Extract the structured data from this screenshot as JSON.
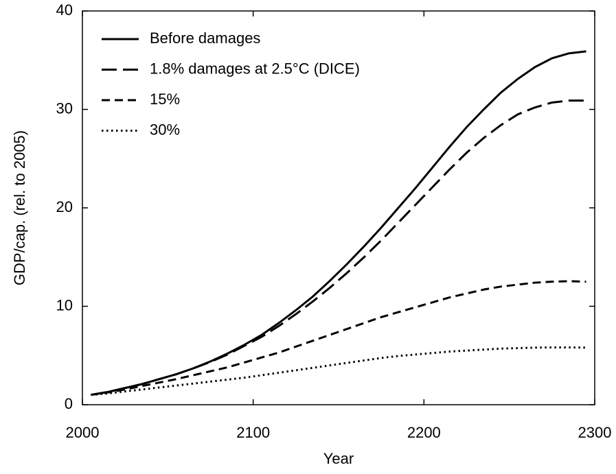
{
  "chart_data": {
    "type": "line",
    "x_label": "Year",
    "y_label": "GDP/cap. (rel. to 2005)",
    "x": [
      2005,
      2015,
      2025,
      2035,
      2045,
      2055,
      2065,
      2075,
      2085,
      2095,
      2105,
      2115,
      2125,
      2135,
      2145,
      2155,
      2165,
      2175,
      2185,
      2195,
      2205,
      2215,
      2225,
      2235,
      2245,
      2255,
      2265,
      2275,
      2285,
      2295
    ],
    "series": [
      {
        "name": "Before damages",
        "color": "#000000",
        "dash": "solid",
        "values": [
          1,
          1.3,
          1.7,
          2.1,
          2.6,
          3.1,
          3.7,
          4.4,
          5.2,
          6.1,
          7.1,
          8.3,
          9.6,
          11.0,
          12.6,
          14.3,
          16.1,
          18.0,
          20.0,
          22.0,
          24.1,
          26.2,
          28.2,
          30.0,
          31.7,
          33.1,
          34.3,
          35.2,
          35.7,
          35.9
        ]
      },
      {
        "name": "1.8% damages at 2.5°C (DICE)",
        "color": "#000000",
        "dash": "long",
        "values": [
          1,
          1.3,
          1.7,
          2.1,
          2.6,
          3.1,
          3.7,
          4.35,
          5.1,
          6.0,
          6.9,
          8.0,
          9.2,
          10.5,
          11.9,
          13.4,
          15.0,
          16.7,
          18.5,
          20.3,
          22.1,
          23.9,
          25.6,
          27.1,
          28.4,
          29.5,
          30.2,
          30.7,
          30.9,
          30.9
        ]
      },
      {
        "name": "15%",
        "color": "#000000",
        "dash": "short",
        "values": [
          1,
          1.25,
          1.55,
          1.9,
          2.25,
          2.6,
          3.0,
          3.4,
          3.8,
          4.3,
          4.8,
          5.3,
          5.9,
          6.5,
          7.1,
          7.7,
          8.3,
          8.9,
          9.4,
          9.9,
          10.4,
          10.9,
          11.3,
          11.7,
          12.0,
          12.2,
          12.4,
          12.5,
          12.55,
          12.5
        ]
      },
      {
        "name": "30%",
        "color": "#000000",
        "dash": "dotted",
        "values": [
          1,
          1.15,
          1.35,
          1.55,
          1.75,
          1.95,
          2.15,
          2.35,
          2.55,
          2.75,
          3.0,
          3.25,
          3.5,
          3.75,
          4.0,
          4.25,
          4.5,
          4.75,
          4.95,
          5.1,
          5.25,
          5.4,
          5.5,
          5.6,
          5.7,
          5.75,
          5.8,
          5.82,
          5.82,
          5.8
        ]
      }
    ],
    "xlim": [
      2000,
      2300
    ],
    "xticks": [
      2000,
      2100,
      2200,
      2300
    ],
    "ylim": [
      0,
      40
    ],
    "yticks": [
      0,
      10,
      20,
      30,
      40
    ],
    "legend": "upper-left"
  }
}
